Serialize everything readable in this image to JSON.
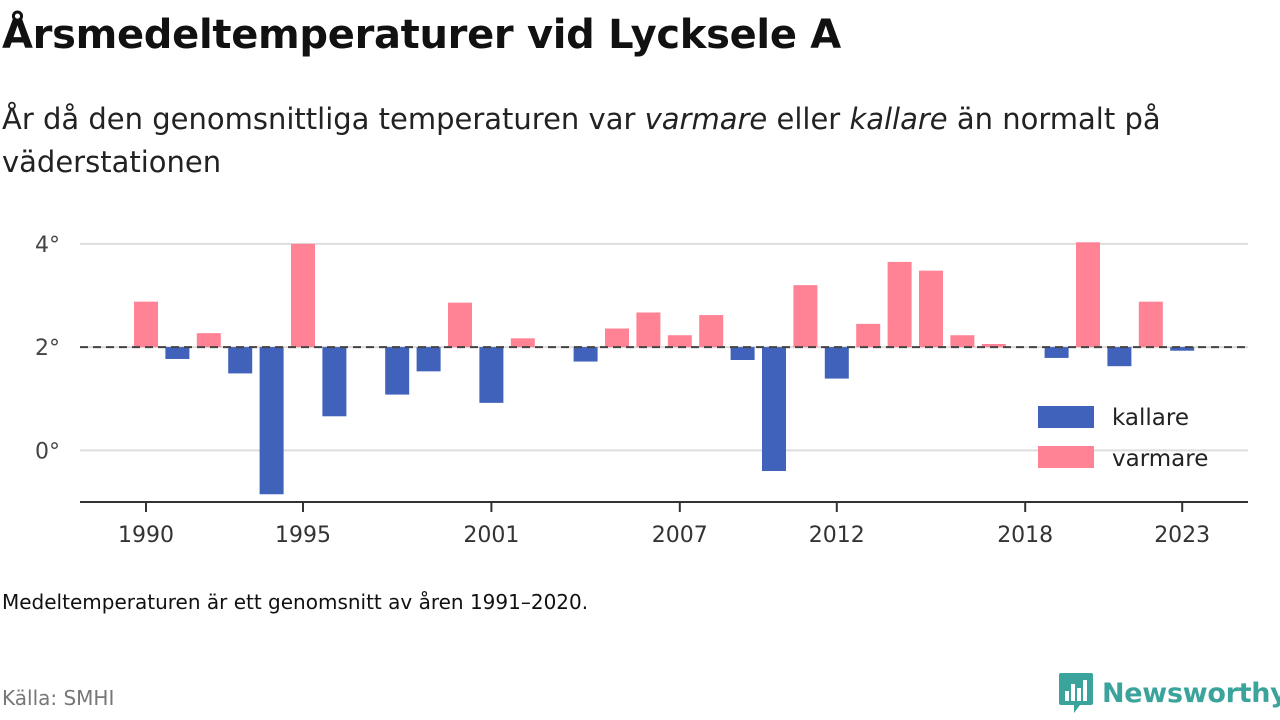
{
  "header": {
    "title": "Årsmedeltemperaturer vid Lycksele A",
    "subtitle_before": "År då den genomsnittliga temperaturen var ",
    "subtitle_em1": "varmare",
    "subtitle_middle": " eller ",
    "subtitle_em2": "kallare",
    "subtitle_after": " än normalt på väderstationen"
  },
  "footer": {
    "note": "Medeltemperaturen är ett genomsnitt av åren 1991–2020.",
    "source": "Källa: SMHI",
    "brand": "Newsworthy"
  },
  "colors": {
    "warmer": "#ff8394",
    "colder": "#4062bb",
    "baseline": "#444444",
    "grid": "#dddddd",
    "brand": "#3aa39b"
  },
  "chart_data": {
    "type": "bar",
    "baseline": 2.0,
    "ylim": [
      -1.0,
      4.5
    ],
    "yticks": [
      0,
      2,
      4
    ],
    "ytick_labels": [
      "0°",
      "2°",
      "4°"
    ],
    "xticks": [
      1990,
      1995,
      2001,
      2007,
      2012,
      2018,
      2023
    ],
    "x": [
      1990,
      1991,
      1992,
      1993,
      1994,
      1995,
      1996,
      1997,
      1998,
      1999,
      2000,
      2001,
      2002,
      2003,
      2004,
      2005,
      2006,
      2007,
      2008,
      2009,
      2010,
      2011,
      2012,
      2013,
      2014,
      2015,
      2016,
      2017,
      2018,
      2019,
      2020,
      2021,
      2022,
      2023
    ],
    "values": [
      2.88,
      1.77,
      2.27,
      1.49,
      -0.85,
      4.0,
      0.66,
      null,
      1.08,
      1.53,
      2.86,
      0.92,
      2.17,
      null,
      1.72,
      2.36,
      2.67,
      2.23,
      2.62,
      1.75,
      -0.4,
      3.2,
      1.39,
      2.45,
      3.65,
      3.48,
      2.23,
      2.06,
      null,
      1.79,
      4.03,
      1.63,
      2.88,
      1.93
    ],
    "legend": [
      "kallare",
      "varmare"
    ],
    "legend_position": "bottom-right",
    "baseline_style": "dashed"
  }
}
